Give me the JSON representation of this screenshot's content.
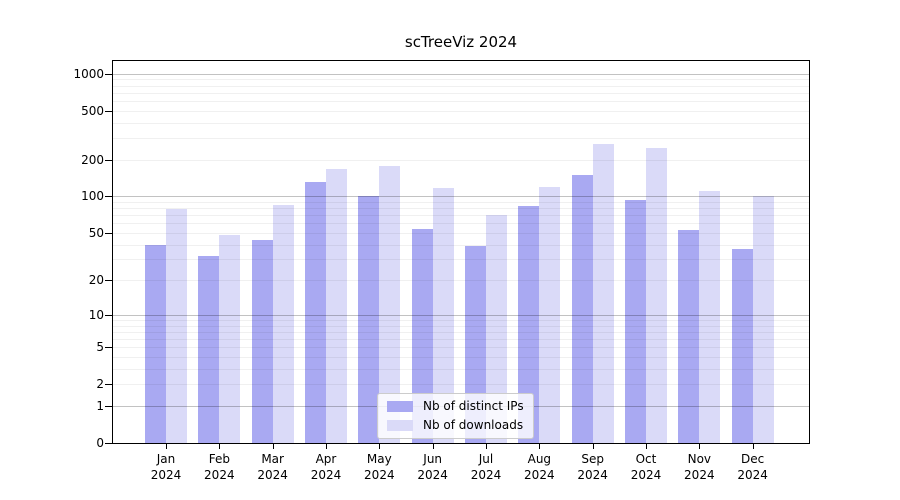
{
  "chart_data": {
    "type": "bar",
    "title": "scTreeViz 2024",
    "year_label": "2024",
    "categories": [
      "Jan",
      "Feb",
      "Mar",
      "Apr",
      "May",
      "Jun",
      "Jul",
      "Aug",
      "Sep",
      "Oct",
      "Nov",
      "Dec"
    ],
    "series": [
      {
        "name": "Nb of distinct IPs",
        "color": "#a9a9f2",
        "values": [
          40,
          32,
          44,
          130,
          100,
          54,
          39,
          84,
          149,
          94,
          53,
          37
        ]
      },
      {
        "name": "Nb of downloads",
        "color": "#dadaf8",
        "values": [
          78,
          48,
          85,
          168,
          177,
          117,
          70,
          120,
          266,
          248,
          111,
          100
        ]
      }
    ],
    "yticks": [
      0,
      1,
      2,
      5,
      10,
      20,
      50,
      100,
      200,
      500,
      1000
    ],
    "scale": "log1p",
    "ylim": [
      0,
      1270
    ],
    "grid": true,
    "legend_position": "lower center",
    "colors": {
      "bar_dark": "#a9a9f2",
      "bar_light": "#dadaf8",
      "grid_major": "#c2c2c2",
      "grid_minor": "#f0f0f0",
      "spine": "#000000",
      "legend_border": "#cccccc"
    }
  }
}
